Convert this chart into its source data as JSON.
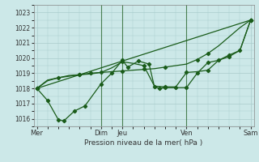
{
  "title": "Pression niveau de la mer( hPa )",
  "bg_color": "#cce8e8",
  "grid_color": "#aacccc",
  "line_color": "#1a5c1a",
  "ylim": [
    1015.5,
    1023.5
  ],
  "yticks": [
    1016,
    1017,
    1018,
    1019,
    1020,
    1021,
    1022,
    1023
  ],
  "day_positions": [
    0,
    6,
    8,
    14,
    20
  ],
  "day_labels": [
    "Mer",
    "Dim",
    "Jeu",
    "Ven",
    "Sam"
  ],
  "vline_positions": [
    6,
    8,
    14
  ],
  "xlim": [
    -0.3,
    20.3
  ],
  "line1_x": [
    0,
    1,
    2,
    3,
    4,
    5,
    6,
    7,
    8,
    9,
    10,
    11,
    12,
    13,
    14,
    15,
    16,
    17,
    18,
    19,
    20
  ],
  "line1_y": [
    1018.0,
    1018.5,
    1018.7,
    1018.85,
    1018.9,
    1019.0,
    1019.05,
    1019.1,
    1019.15,
    1019.2,
    1019.25,
    1019.3,
    1019.4,
    1019.5,
    1019.6,
    1019.9,
    1020.3,
    1020.8,
    1021.4,
    1022.0,
    1022.5
  ],
  "line2_x": [
    0,
    1,
    2,
    2.5,
    3.5,
    4.5,
    6,
    7,
    8,
    8.5,
    9.5,
    10.5,
    11,
    11.5,
    12,
    13,
    14,
    15,
    16,
    17,
    18,
    19,
    20
  ],
  "line2_y": [
    1018.0,
    1017.2,
    1015.95,
    1015.85,
    1016.5,
    1016.85,
    1018.3,
    1019.0,
    1019.85,
    1019.4,
    1019.8,
    1019.6,
    1018.1,
    1018.0,
    1018.05,
    1018.05,
    1018.05,
    1019.0,
    1019.7,
    1019.85,
    1020.1,
    1020.5,
    1022.5
  ],
  "line3_x": [
    0,
    1,
    2,
    3,
    4,
    5,
    6,
    7,
    8,
    9,
    10,
    11,
    12,
    13,
    14,
    15,
    16,
    17,
    18,
    19,
    20
  ],
  "line3_y": [
    1018.0,
    1018.55,
    1018.7,
    1018.8,
    1018.9,
    1018.95,
    1019.05,
    1019.35,
    1019.75,
    1019.65,
    1019.5,
    1018.15,
    1018.1,
    1018.1,
    1019.05,
    1019.1,
    1019.2,
    1019.85,
    1020.2,
    1020.5,
    1022.5
  ],
  "line4_x": [
    0,
    20
  ],
  "line4_y": [
    1018.0,
    1022.5
  ],
  "line4_markers_x": [
    0,
    5,
    10,
    15,
    20
  ],
  "line4_markers_y": [
    1018.0,
    1019.0,
    1019.3,
    1019.85,
    1022.5
  ]
}
